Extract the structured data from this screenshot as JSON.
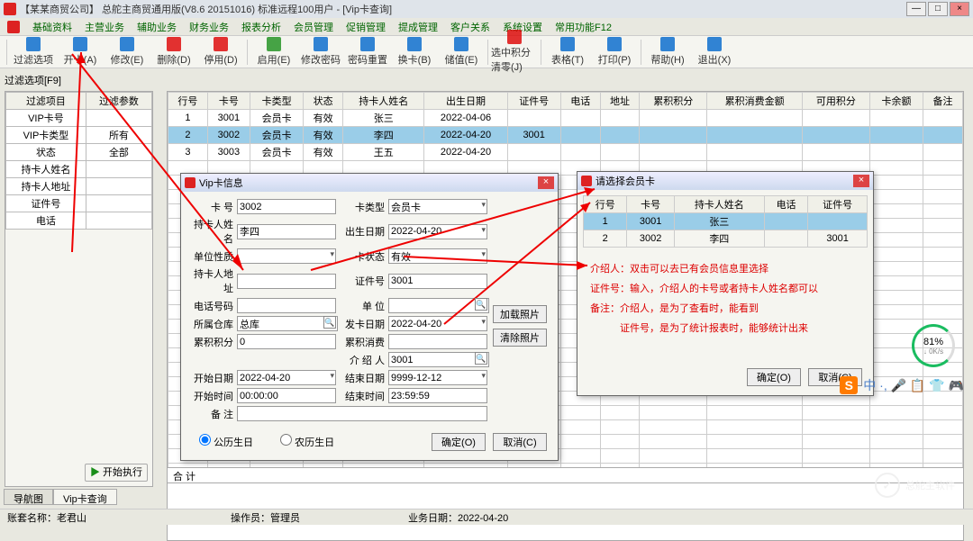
{
  "window": {
    "title": "【某某商贸公司】 总舵主商贸通用版(V8.6 20151016) 标准远程100用户 - [Vip卡查询]",
    "min": "—",
    "max": "□",
    "close": "×"
  },
  "menu": [
    "基础资料",
    "主营业务",
    "辅助业务",
    "财务业务",
    "报表分析",
    "会员管理",
    "促销管理",
    "提成管理",
    "客户关系",
    "系统设置",
    "常用功能F12"
  ],
  "toolbar": [
    {
      "label": "过滤选项",
      "color": "#0066cc"
    },
    {
      "label": "开卡(A)",
      "color": "#0066cc"
    },
    {
      "label": "修改(E)",
      "color": "#0066cc"
    },
    {
      "label": "删除(D)",
      "color": "#d00"
    },
    {
      "label": "停用(D)",
      "color": "#d00"
    },
    {
      "label": "启用(E)",
      "color": "#1a8e1a"
    },
    {
      "label": "修改密码",
      "color": "#0066cc"
    },
    {
      "label": "密码重置",
      "color": "#0066cc"
    },
    {
      "label": "换卡(B)",
      "color": "#0066cc"
    },
    {
      "label": "储值(E)",
      "color": "#0066cc"
    },
    {
      "label": "选中积分清零(J)",
      "color": "#d00"
    },
    {
      "label": "表格(T)",
      "color": "#0066cc"
    },
    {
      "label": "打印(P)",
      "color": "#0066cc"
    },
    {
      "label": "帮助(H)",
      "color": "#0066cc"
    },
    {
      "label": "退出(X)",
      "color": "#0066cc"
    }
  ],
  "filter_panel": {
    "title": "过滤选项[F9]",
    "cols": [
      "过滤项目",
      "过滤参数"
    ],
    "rows": [
      [
        "VIP卡号",
        ""
      ],
      [
        "VIP卡类型",
        "所有"
      ],
      [
        "状态",
        "全部"
      ],
      [
        "持卡人姓名",
        ""
      ],
      [
        "持卡人地址",
        ""
      ],
      [
        "证件号",
        ""
      ],
      [
        "电话",
        ""
      ]
    ],
    "start_btn": "开始执行"
  },
  "grid": {
    "cols": [
      "行号",
      "卡号",
      "卡类型",
      "状态",
      "持卡人姓名",
      "出生日期",
      "证件号",
      "电话",
      "地址",
      "累积积分",
      "累积消费金额",
      "可用积分",
      "卡余额",
      "备注"
    ],
    "rows": [
      [
        "1",
        "3001",
        "会员卡",
        "有效",
        "张三",
        "2022-04-06",
        "",
        "",
        "",
        "",
        "",
        "",
        "",
        ""
      ],
      [
        "2",
        "3002",
        "会员卡",
        "有效",
        "李四",
        "2022-04-20",
        "3001",
        "",
        "",
        "",
        "",
        "",
        "",
        ""
      ],
      [
        "3",
        "3003",
        "会员卡",
        "有效",
        "王五",
        "2022-04-20",
        "",
        "",
        "",
        "",
        "",
        "",
        "",
        ""
      ]
    ],
    "selected_row": 1,
    "footer_label": "合 计"
  },
  "dlg1": {
    "title": "Vip卡信息",
    "fields": {
      "card_no_lbl": "卡   号",
      "card_no": "3002",
      "card_type_lbl": "卡类型",
      "card_type": "会员卡",
      "holder_lbl": "持卡人姓名",
      "holder": "李四",
      "birth_lbl": "出生日期",
      "birth": "2022-04-20",
      "unit_nature_lbl": "单位性质",
      "unit_nature": "",
      "card_status_lbl": "卡状态",
      "card_status": "有效",
      "addr_lbl": "持卡人地址",
      "addr": "",
      "cert_lbl": "证件号",
      "cert": "3001",
      "phone_lbl": "电话号码",
      "phone": "",
      "unit_lbl": "单   位",
      "unit": "",
      "store_lbl": "所属仓库",
      "store": "总库",
      "issue_lbl": "发卡日期",
      "issue": "2022-04-20",
      "points_lbl": "累积积分",
      "points": "0",
      "acc_consume_lbl": "累积消费",
      "acc_consume": "",
      "intro_lbl": "介 绍 人",
      "intro": "3001",
      "start_date_lbl": "开始日期",
      "start_date": "2022-04-20",
      "end_date_lbl": "结束日期",
      "end_date": "9999-12-12",
      "start_time_lbl": "开始时间",
      "start_time": "00:00:00",
      "end_time_lbl": "结束时间",
      "end_time": "23:59:59",
      "remark_lbl": "备   注",
      "remark": ""
    },
    "radio1": "公历生日",
    "radio2": "农历生日",
    "btn_add_photo": "加载照片",
    "btn_clear_photo": "清除照片",
    "btn_ok": "确定(O)",
    "btn_cancel": "取消(C)"
  },
  "dlg2": {
    "title": "请选择会员卡",
    "cols": [
      "行号",
      "卡号",
      "持卡人姓名",
      "电话",
      "证件号"
    ],
    "rows": [
      [
        "1",
        "3001",
        "张三",
        "",
        ""
      ],
      [
        "2",
        "3002",
        "李四",
        "",
        "3001"
      ]
    ],
    "selected_row": 0,
    "btn_ok": "确定(O)",
    "btn_cancel": "取消(C)"
  },
  "annotation": {
    "l1": "介绍人：双击可以去已有会员信息里选择",
    "l2": "证件号：输入，介绍人的卡号或者持卡人姓名都可以",
    "l3": "备注：介绍人，是为了查看时，能看到",
    "l4": "　　　证件号，是为了统计报表时，能够统计出来"
  },
  "gauge": {
    "pct": "81%",
    "sub": "↓ 0K/s"
  },
  "ime_first": "S",
  "ime_rest": "中 ·, 🎤 📋 👕 🎮",
  "tabs": {
    "t1": "导航图",
    "t2": "Vip卡查询"
  },
  "statusbar": {
    "acct_lbl": "账套名称：",
    "acct": "老君山",
    "op_lbl": "操作员：",
    "op": "管理员",
    "date_lbl": "业务日期：",
    "date": "2022-04-20"
  },
  "watermark": "总舵主软件"
}
